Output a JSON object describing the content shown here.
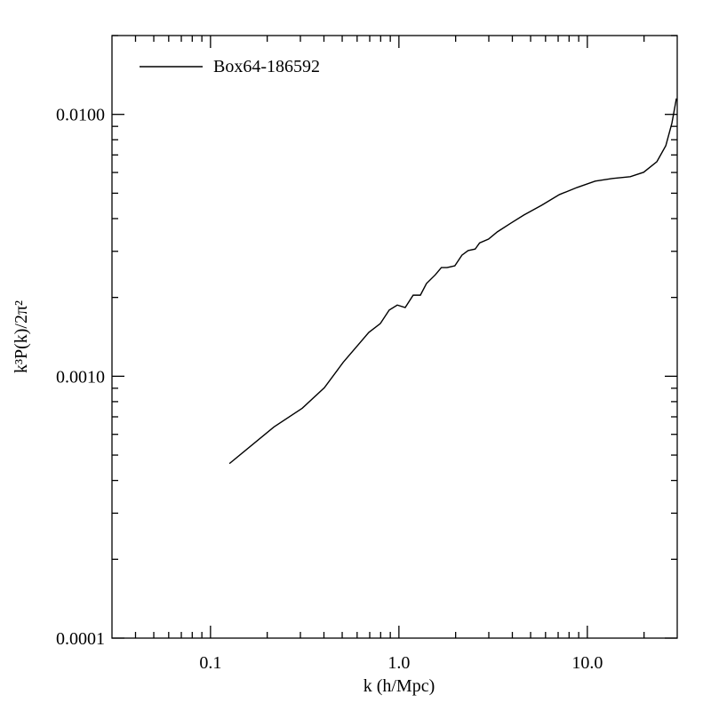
{
  "chart_data": {
    "type": "line",
    "xlabel": "k (h/Mpc)",
    "ylabel": "k³P(k)/2π²",
    "xscale": "log",
    "yscale": "log",
    "xlim": [
      0.03,
      30
    ],
    "ylim": [
      0.0001,
      0.02
    ],
    "xticks": [
      {
        "value": 0.1,
        "label": "0.1"
      },
      {
        "value": 1,
        "label": "1.0"
      },
      {
        "value": 10,
        "label": "10.0"
      }
    ],
    "yticks": [
      {
        "value": 0.0001,
        "label": "0.0001"
      },
      {
        "value": 0.001,
        "label": "0.0010"
      },
      {
        "value": 0.01,
        "label": "0.0100"
      }
    ],
    "xminorticks": [
      0.04,
      0.05,
      0.06,
      0.07,
      0.08,
      0.09,
      0.2,
      0.3,
      0.4,
      0.5,
      0.6,
      0.7,
      0.8,
      0.9,
      2,
      3,
      4,
      5,
      6,
      7,
      8,
      9,
      20
    ],
    "yminorticks": [
      0.0002,
      0.0003,
      0.0004,
      0.0005,
      0.0006,
      0.0007,
      0.0008,
      0.0009,
      0.002,
      0.003,
      0.004,
      0.005,
      0.006,
      0.007,
      0.008,
      0.009,
      0.02
    ],
    "legend": "upper left",
    "series": [
      {
        "name": "Box64-186592",
        "color": "#000000",
        "x": [
          0.126,
          0.217,
          0.307,
          0.402,
          0.506,
          0.692,
          0.797,
          0.888,
          0.98,
          1.08,
          1.19,
          1.3,
          1.4,
          1.56,
          1.68,
          1.8,
          1.98,
          2.16,
          2.33,
          2.54,
          2.68,
          2.99,
          3.33,
          3.92,
          4.61,
          5.73,
          7.11,
          8.83,
          11.0,
          13.6,
          16.9,
          19.9,
          23.4,
          26.1,
          28.1,
          29.7
        ],
        "values": [
          0.000464,
          0.00064,
          0.000755,
          0.000904,
          0.00113,
          0.00147,
          0.00159,
          0.00179,
          0.00187,
          0.00183,
          0.00204,
          0.00204,
          0.00226,
          0.00244,
          0.0026,
          0.0026,
          0.00264,
          0.0029,
          0.00302,
          0.00306,
          0.00323,
          0.00334,
          0.00356,
          0.00384,
          0.00413,
          0.0045,
          0.00494,
          0.00526,
          0.00556,
          0.00569,
          0.00578,
          0.00601,
          0.0066,
          0.0076,
          0.00925,
          0.0115
        ]
      }
    ]
  }
}
